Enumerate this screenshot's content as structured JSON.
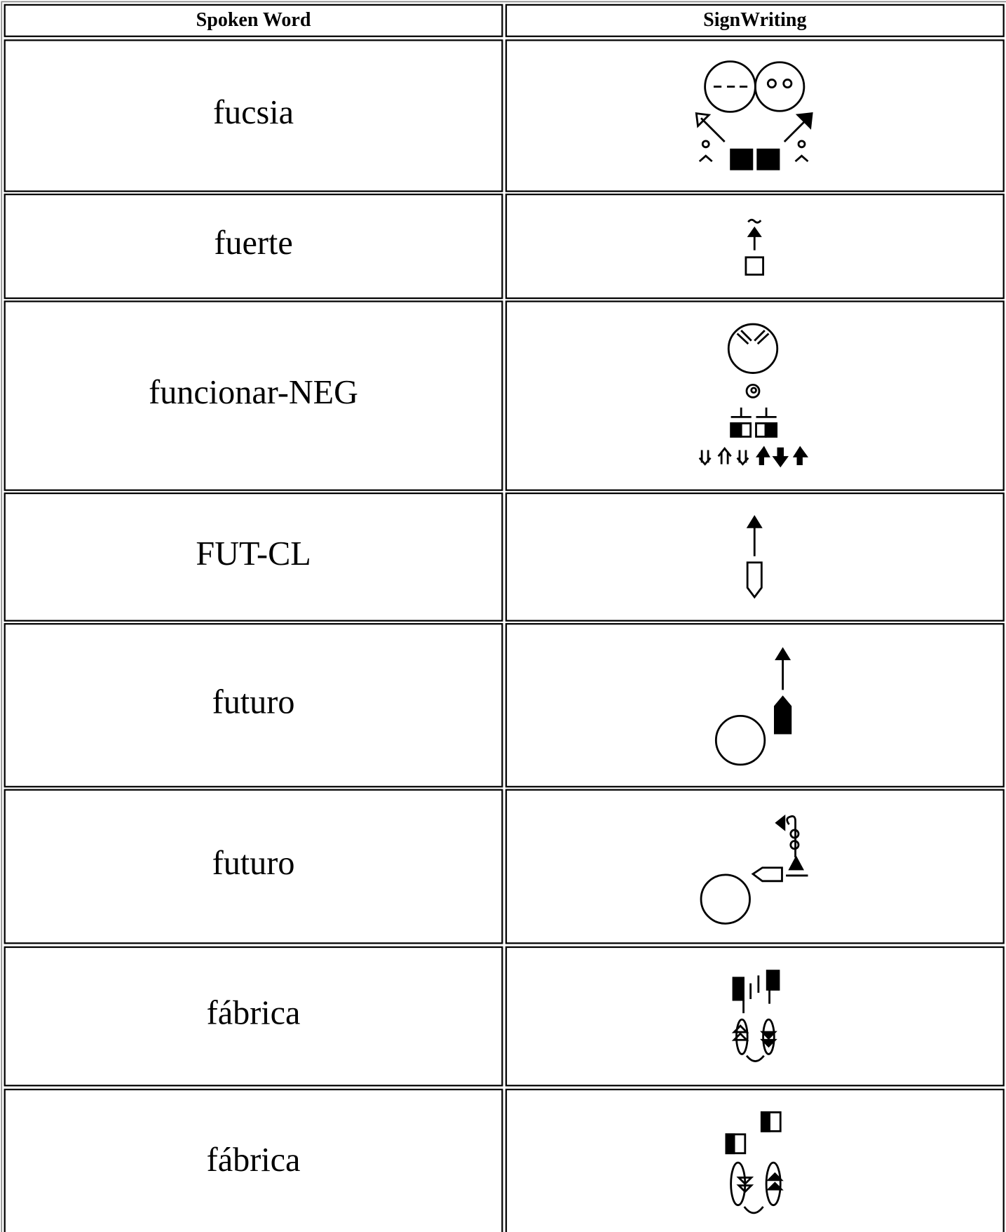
{
  "table": {
    "header": [
      "Spoken Word",
      "SignWriting"
    ],
    "rows": [
      "fucsia",
      "fuerte",
      "funcionar-NEG",
      "FUT-CL",
      "futuro",
      "futuro",
      "fábrica",
      "fábrica"
    ]
  }
}
